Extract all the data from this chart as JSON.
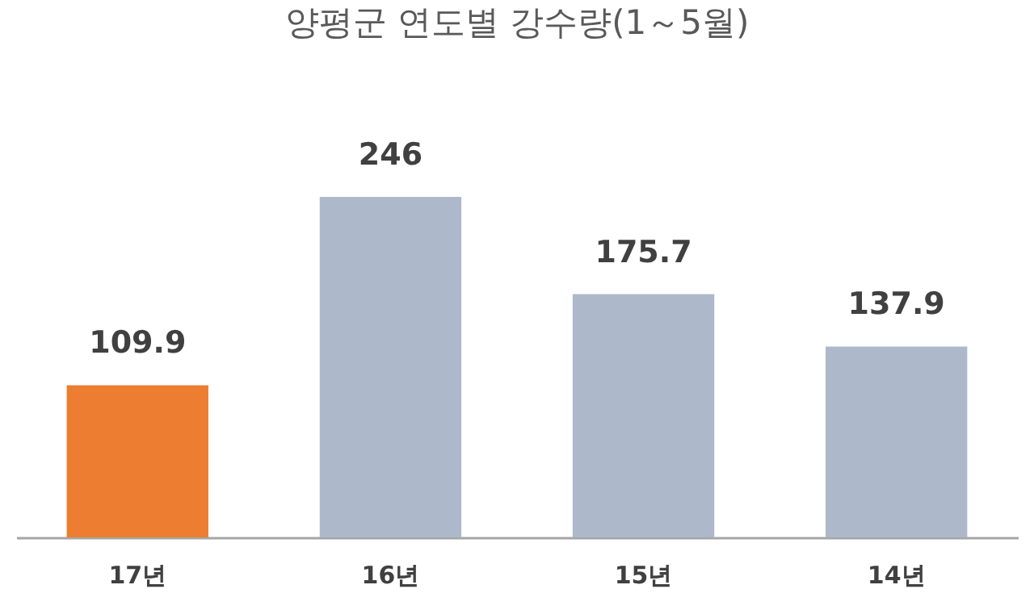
{
  "chart_data": {
    "type": "bar",
    "title": "양평군 연도별 강수량(1～5월)",
    "categories": [
      "17년",
      "16년",
      "15년",
      "14년"
    ],
    "values": [
      109.9,
      246,
      175.7,
      137.9
    ],
    "colors": [
      "#ed7d31",
      "#adb9ca",
      "#adb9ca",
      "#adb9ca"
    ],
    "tick_labels": "x",
    "data_labels": true,
    "grid": false
  }
}
